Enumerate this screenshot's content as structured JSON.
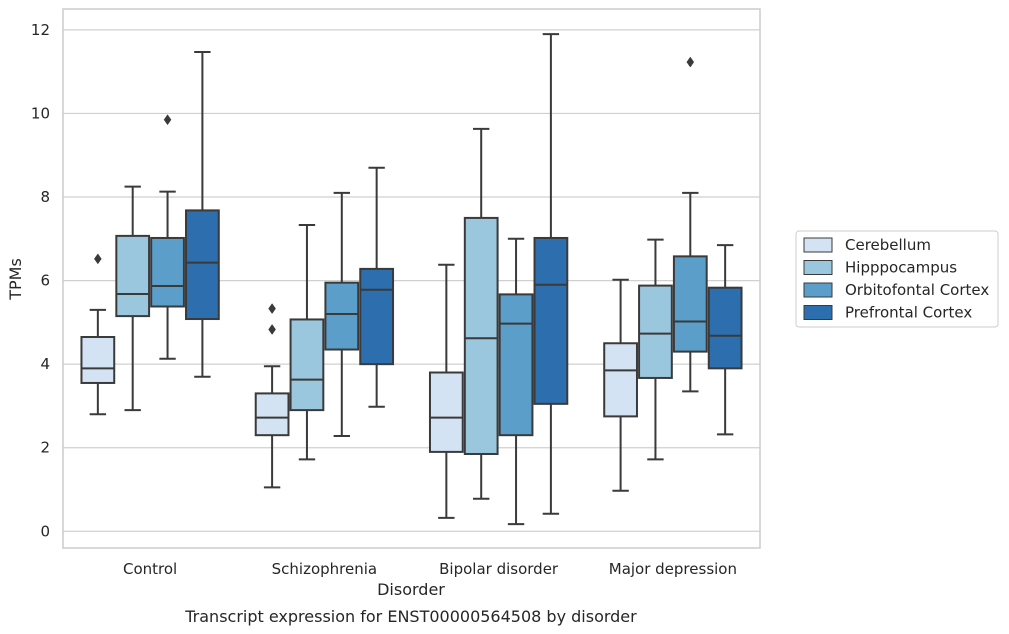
{
  "chart_data": {
    "type": "box",
    "caption": "Transcript expression for ENST00000564508 by disorder",
    "xlabel": "Disorder",
    "ylabel": "TPMs",
    "ylim": [
      -0.4,
      12.5
    ],
    "yticks": [
      0,
      2,
      4,
      6,
      8,
      10,
      12
    ],
    "grid": "horizontal",
    "legend_position": "right, outside plot",
    "categories": [
      "Control",
      "Schizophrenia",
      "Bipolar disorder",
      "Major depression"
    ],
    "series": [
      {
        "name": "Cerebellum",
        "color": "#d3e3f3",
        "boxes": [
          {
            "whislo": 2.8,
            "q1": 3.55,
            "med": 3.9,
            "q3": 4.65,
            "whishi": 5.3,
            "fliers": [
              6.52
            ]
          },
          {
            "whislo": 1.05,
            "q1": 2.3,
            "med": 2.72,
            "q3": 3.3,
            "whishi": 3.95,
            "fliers": [
              4.83,
              5.33
            ]
          },
          {
            "whislo": 0.32,
            "q1": 1.9,
            "med": 2.72,
            "q3": 3.8,
            "whishi": 6.38,
            "fliers": []
          },
          {
            "whislo": 0.97,
            "q1": 2.75,
            "med": 3.85,
            "q3": 4.5,
            "whishi": 6.02,
            "fliers": []
          }
        ]
      },
      {
        "name": "Hipppocampus",
        "color": "#9ac6de",
        "boxes": [
          {
            "whislo": 2.9,
            "q1": 5.15,
            "med": 5.68,
            "q3": 7.07,
            "whishi": 8.25,
            "fliers": []
          },
          {
            "whislo": 1.72,
            "q1": 2.9,
            "med": 3.63,
            "q3": 5.07,
            "whishi": 7.33,
            "fliers": []
          },
          {
            "whislo": 0.78,
            "q1": 1.85,
            "med": 4.62,
            "q3": 7.5,
            "whishi": 9.63,
            "fliers": []
          },
          {
            "whislo": 1.72,
            "q1": 3.67,
            "med": 4.73,
            "q3": 5.88,
            "whishi": 6.98,
            "fliers": []
          }
        ]
      },
      {
        "name": "Orbitofontal Cortex",
        "color": "#5a9ec9",
        "boxes": [
          {
            "whislo": 4.13,
            "q1": 5.38,
            "med": 5.87,
            "q3": 7.02,
            "whishi": 8.13,
            "fliers": [
              9.85
            ]
          },
          {
            "whislo": 2.28,
            "q1": 4.35,
            "med": 5.2,
            "q3": 5.95,
            "whishi": 8.1,
            "fliers": []
          },
          {
            "whislo": 0.17,
            "q1": 2.3,
            "med": 4.97,
            "q3": 5.67,
            "whishi": 7.0,
            "fliers": []
          },
          {
            "whislo": 3.35,
            "q1": 4.3,
            "med": 5.02,
            "q3": 6.58,
            "whishi": 8.1,
            "fliers": [
              11.23
            ]
          }
        ]
      },
      {
        "name": "Prefrontal Cortex",
        "color": "#2d6eae",
        "boxes": [
          {
            "whislo": 3.7,
            "q1": 5.08,
            "med": 6.43,
            "q3": 7.68,
            "whishi": 11.47,
            "fliers": []
          },
          {
            "whislo": 2.98,
            "q1": 4.0,
            "med": 5.78,
            "q3": 6.28,
            "whishi": 8.7,
            "fliers": []
          },
          {
            "whislo": 0.42,
            "q1": 3.05,
            "med": 5.9,
            "q3": 7.02,
            "whishi": 11.9,
            "fliers": []
          },
          {
            "whislo": 2.32,
            "q1": 3.9,
            "med": 4.68,
            "q3": 5.83,
            "whishi": 6.85,
            "fliers": []
          }
        ]
      }
    ]
  }
}
